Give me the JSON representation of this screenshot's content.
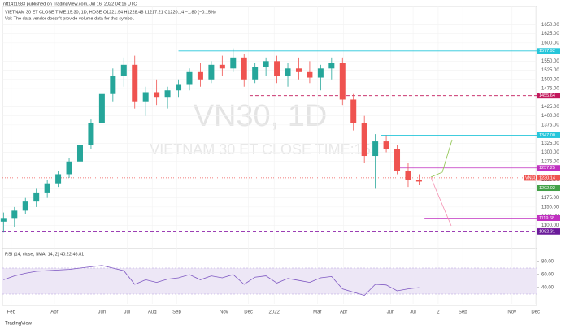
{
  "chart_data": {
    "type": "candlestick",
    "publisher": "ntt1411983 published on TradingView.com, Jul 16, 2022 04:16 UTC",
    "title": "VIETNAM 30 ET CLOSE TIME:15:30, 1D, HOSE  O1221.94 H1228.48 L1217.21 C1220.14 −1.80 (−0.15%)",
    "volume_note": "Vol: The data vendor doesn't provide volume data for this symbol.",
    "watermark": "VN30, 1D",
    "watermark_subtitle": "VIETNAM 30 ET CLOSE TIME:15",
    "footer": "TradingView",
    "up_color": "#26a69a",
    "down_color": "#ef5350",
    "xlim": [
      2.8,
      100.5
    ],
    "xticks": [
      {
        "value": 4.4,
        "label": "Feb"
      },
      {
        "value": 12.3,
        "label": "Apr"
      },
      {
        "value": 21,
        "label": "Jun"
      },
      {
        "value": 25.6,
        "label": "Jul"
      },
      {
        "value": 30.2,
        "label": "Aug"
      },
      {
        "value": 34.7,
        "label": "Sep"
      },
      {
        "value": 43.3,
        "label": "Nov"
      },
      {
        "value": 47.8,
        "label": "Dec"
      },
      {
        "value": 52.5,
        "label": "2022"
      },
      {
        "value": 60.4,
        "label": "Mar"
      },
      {
        "value": 65.2,
        "label": "Apr"
      },
      {
        "value": 73.8,
        "label": "Jun"
      },
      {
        "value": 77.9,
        "label": "Jul"
      },
      {
        "value": 82.5,
        "label": "2"
      },
      {
        "value": 87,
        "label": "Sep"
      },
      {
        "value": 96,
        "label": "Nov"
      },
      {
        "value": 100.3,
        "label": "Dec"
      }
    ],
    "ylim": [
      1045,
      1700
    ],
    "yticks": [
      {
        "value": 1100,
        "label": "1100.00"
      },
      {
        "value": 1125,
        "label": "1125.00"
      },
      {
        "value": 1150,
        "label": "1150.00"
      },
      {
        "value": 1175,
        "label": "1175.00"
      },
      {
        "value": 1200,
        "label": "1200.00"
      },
      {
        "value": 1225,
        "label": "1225.00"
      },
      {
        "value": 1275,
        "label": "1275.00"
      },
      {
        "value": 1300,
        "label": "1300.00"
      },
      {
        "value": 1325,
        "label": "1325.00"
      },
      {
        "value": 1375,
        "label": "1375.00"
      },
      {
        "value": 1400,
        "label": "1400.00"
      },
      {
        "value": 1425,
        "label": "1425.00"
      },
      {
        "value": 1475,
        "label": "1475.00"
      },
      {
        "value": 1500,
        "label": "1500.00"
      },
      {
        "value": 1525,
        "label": "1525.00"
      },
      {
        "value": 1550,
        "label": "1550.00"
      },
      {
        "value": 1600,
        "label": "1600.00"
      },
      {
        "value": 1625,
        "label": "1625.00"
      },
      {
        "value": 1650,
        "label": "1650.00"
      }
    ],
    "x": [
      3,
      5,
      7,
      9,
      11,
      13,
      15,
      17,
      19,
      21,
      23,
      25,
      27,
      29,
      31,
      33,
      35,
      37,
      39,
      41,
      43,
      45,
      47,
      49,
      51,
      53,
      55,
      57,
      59,
      61,
      63,
      65,
      67,
      69,
      71,
      73,
      75,
      77,
      79
    ],
    "open": [
      1110,
      1120,
      1140,
      1165,
      1190,
      1215,
      1240,
      1275,
      1320,
      1380,
      1460,
      1510,
      1540,
      1440,
      1465,
      1450,
      1470,
      1485,
      1520,
      1500,
      1540,
      1530,
      1560,
      1500,
      1535,
      1550,
      1510,
      1530,
      1520,
      1505,
      1530,
      1545,
      1445,
      1380,
      1290,
      1330,
      1310,
      1250,
      1225
    ],
    "high": [
      1135,
      1150,
      1175,
      1200,
      1225,
      1250,
      1285,
      1330,
      1390,
      1470,
      1530,
      1560,
      1565,
      1480,
      1500,
      1480,
      1500,
      1530,
      1545,
      1550,
      1565,
      1585,
      1570,
      1545,
      1560,
      1565,
      1545,
      1560,
      1550,
      1540,
      1560,
      1560,
      1460,
      1400,
      1350,
      1347,
      1320,
      1270,
      1240
    ],
    "low": [
      1080,
      1095,
      1130,
      1150,
      1175,
      1205,
      1230,
      1265,
      1310,
      1370,
      1440,
      1480,
      1420,
      1400,
      1430,
      1420,
      1450,
      1470,
      1480,
      1490,
      1510,
      1520,
      1480,
      1490,
      1510,
      1490,
      1480,
      1500,
      1490,
      1470,
      1500,
      1430,
      1360,
      1270,
      1200,
      1300,
      1240,
      1205,
      1210
    ],
    "close": [
      1120,
      1140,
      1165,
      1190,
      1215,
      1240,
      1275,
      1320,
      1380,
      1460,
      1510,
      1540,
      1440,
      1465,
      1450,
      1470,
      1485,
      1520,
      1500,
      1540,
      1530,
      1560,
      1500,
      1535,
      1550,
      1510,
      1530,
      1520,
      1505,
      1530,
      1545,
      1445,
      1380,
      1290,
      1330,
      1310,
      1250,
      1225,
      1220
    ],
    "levels": [
      {
        "value": 1577.92,
        "label": "1577.92",
        "color": "#26c6da",
        "style": "solid",
        "start": 35
      },
      {
        "value": 1455.64,
        "label": "1455.64",
        "color": "#c2185b",
        "style": "dashed",
        "start": 48
      },
      {
        "value": 1347,
        "label": "1347.00",
        "color": "#26c6da",
        "style": "solid",
        "start": 72
      },
      {
        "value": 1257.25,
        "label": "1257.25",
        "color": "#c030c0",
        "style": "solid",
        "start": 75
      },
      {
        "value": 1230.14,
        "label": "1230.14",
        "color": "#ef5350",
        "style": "dotted",
        "start": 2.8
      },
      {
        "value": 1202.02,
        "label": "1202.02",
        "color": "#43a047",
        "style": "dashed",
        "start": 34
      },
      {
        "value": 1119.68,
        "label": "1119.68",
        "color": "#c030c0",
        "style": "solid",
        "start": 80
      },
      {
        "value": 1084.08,
        "label": "1084.08",
        "color": "#8e24aa",
        "style": "dashed",
        "start": 2.8
      },
      {
        "value": 1082.31,
        "label": "1082.31",
        "color": "#6a1b9a",
        "style": "none",
        "start": 2.8
      }
    ],
    "symbol_tag": "VN30",
    "rsi": {
      "title": "RSI (14, close, SMA, 14, 2)  40.22  46.81",
      "color": "#7e57c2",
      "ylim": [
        15,
        95
      ],
      "yticks": [
        {
          "value": 80,
          "label": "80.00"
        },
        {
          "value": 60,
          "label": "60.00"
        },
        {
          "value": 40,
          "label": "40.00"
        }
      ],
      "band": [
        30,
        70
      ],
      "values": [
        52,
        58,
        62,
        65,
        66,
        67,
        68,
        70,
        72,
        74,
        70,
        66,
        45,
        52,
        48,
        53,
        55,
        60,
        52,
        58,
        55,
        60,
        45,
        56,
        58,
        47,
        54,
        51,
        48,
        55,
        57,
        38,
        33,
        28,
        45,
        44,
        35,
        38,
        40
      ]
    }
  }
}
